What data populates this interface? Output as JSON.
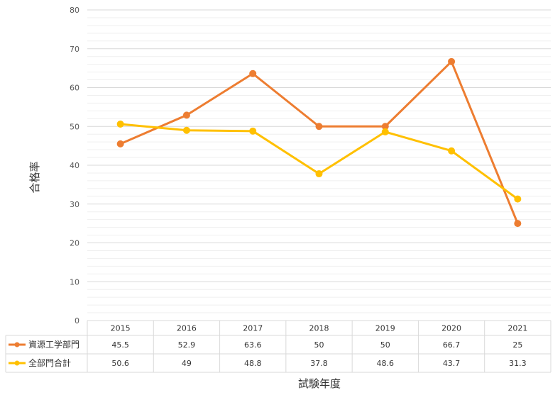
{
  "chart_data": {
    "type": "line",
    "categories": [
      "2015",
      "2016",
      "2017",
      "2018",
      "2019",
      "2020",
      "2021"
    ],
    "series": [
      {
        "name": "資源工学部門",
        "values": [
          45.5,
          52.9,
          63.6,
          50,
          50,
          66.7,
          25
        ],
        "color": "#ED7D31"
      },
      {
        "name": "全部門合計",
        "values": [
          50.6,
          49,
          48.8,
          37.8,
          48.6,
          43.7,
          31.3
        ],
        "color": "#FFC000"
      }
    ],
    "table_values": [
      [
        "45.5",
        "52.9",
        "63.6",
        "50",
        "50",
        "66.7",
        "25"
      ],
      [
        "50.6",
        "49",
        "48.8",
        "37.8",
        "48.6",
        "43.7",
        "31.3"
      ]
    ],
    "yticks": [
      "0",
      "10",
      "20",
      "30",
      "40",
      "50",
      "60",
      "70",
      "80"
    ],
    "ylim": [
      0,
      80
    ],
    "ylabel": "合格率",
    "xlabel": "試験年度",
    "grid": true,
    "legend": "data-table"
  }
}
